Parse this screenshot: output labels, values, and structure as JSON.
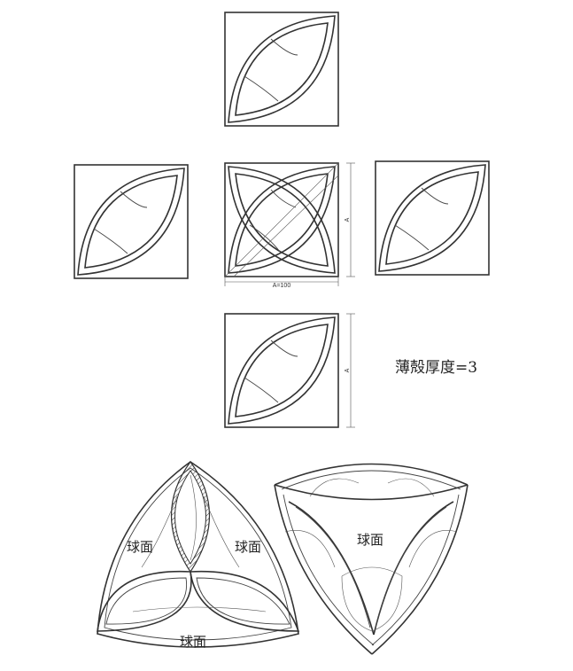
{
  "dimensions": {
    "width_label": "A=100",
    "height_label": "A"
  },
  "note": "薄殻厚度=3",
  "surface_label": "球面",
  "views": [
    "top",
    "left",
    "front",
    "right",
    "bottom"
  ],
  "isometric_views": [
    "triangle-view",
    "shell-view"
  ]
}
